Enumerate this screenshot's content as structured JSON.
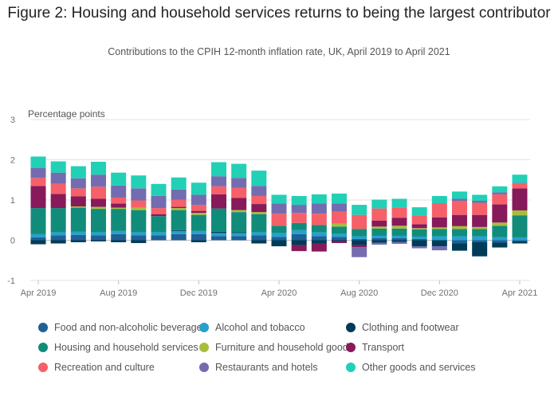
{
  "chart_data": {
    "type": "bar",
    "stacked": true,
    "title": "Figure 2: Housing and household services returns to being the largest contributor",
    "subtitle": "Contributions to the CPIH 12-month inflation rate, UK, April 2019 to April 2021",
    "ylabel": "Percentage points",
    "ylim": [
      -1,
      3
    ],
    "yticks": [
      3,
      2,
      1,
      0,
      -1
    ],
    "grid": true,
    "legend_position": "bottom",
    "x_tick_labels": [
      "Apr 2019",
      "Aug 2019",
      "Dec 2019",
      "Apr 2020",
      "Aug 2020",
      "Dec 2020",
      "Apr 2021"
    ],
    "x_tick_indices": [
      0,
      4,
      8,
      12,
      16,
      20,
      24
    ],
    "categories": [
      "Apr 2019",
      "May 2019",
      "Jun 2019",
      "Jul 2019",
      "Aug 2019",
      "Sep 2019",
      "Oct 2019",
      "Nov 2019",
      "Dec 2019",
      "Jan 2020",
      "Feb 2020",
      "Mar 2020",
      "Apr 2020",
      "May 2020",
      "Jun 2020",
      "Jul 2020",
      "Aug 2020",
      "Sep 2020",
      "Oct 2020",
      "Nov 2020",
      "Dec 2020",
      "Jan 2021",
      "Feb 2021",
      "Mar 2021",
      "Apr 2021"
    ],
    "series": [
      {
        "name": "Food and non-alcoholic beverages",
        "color": "#206095",
        "values": [
          0.07,
          0.12,
          0.13,
          0.12,
          0.15,
          0.12,
          0.12,
          0.15,
          0.15,
          0.1,
          0.1,
          0.12,
          0.08,
          0.15,
          0.1,
          0.08,
          0.03,
          0.05,
          0.05,
          0.03,
          0.0,
          -0.08,
          -0.05,
          -0.06,
          -0.03
        ]
      },
      {
        "name": "Alcohol and tobacco",
        "color": "#27A0CC",
        "values": [
          0.08,
          0.08,
          0.08,
          0.08,
          0.08,
          0.08,
          0.08,
          0.08,
          0.08,
          0.08,
          0.08,
          0.08,
          0.1,
          0.1,
          0.1,
          0.08,
          0.07,
          0.06,
          0.06,
          0.06,
          0.1,
          0.1,
          0.1,
          0.08,
          0.07
        ]
      },
      {
        "name": "Clothing and footwear",
        "color": "#003C57",
        "values": [
          -0.1,
          -0.08,
          -0.05,
          -0.03,
          -0.05,
          -0.07,
          0.0,
          0.02,
          -0.05,
          0.03,
          0.02,
          -0.08,
          -0.15,
          -0.12,
          -0.08,
          -0.02,
          -0.12,
          -0.06,
          -0.04,
          -0.15,
          -0.15,
          -0.18,
          -0.35,
          -0.12,
          -0.05
        ]
      },
      {
        "name": "Housing and household services",
        "color": "#118C7B",
        "values": [
          0.65,
          0.6,
          0.6,
          0.58,
          0.55,
          0.55,
          0.4,
          0.5,
          0.4,
          0.58,
          0.5,
          0.45,
          0.18,
          0.18,
          0.18,
          0.18,
          0.18,
          0.18,
          0.18,
          0.18,
          0.18,
          0.18,
          0.18,
          0.28,
          0.55
        ]
      },
      {
        "name": "Furniture and household goods",
        "color": "#A8BD3A",
        "values": [
          0.0,
          0.0,
          0.03,
          0.05,
          0.03,
          0.06,
          0.0,
          0.05,
          0.05,
          0.0,
          0.05,
          0.05,
          0.0,
          0.0,
          0.0,
          0.07,
          0.0,
          0.05,
          0.07,
          0.03,
          0.04,
          0.07,
          0.05,
          0.08,
          0.12
        ]
      },
      {
        "name": "Transport",
        "color": "#871A5B",
        "values": [
          0.55,
          0.35,
          0.25,
          0.2,
          0.1,
          0.0,
          0.05,
          0.03,
          0.05,
          0.35,
          0.3,
          0.2,
          0.0,
          -0.15,
          -0.2,
          -0.05,
          -0.05,
          0.15,
          0.2,
          0.1,
          0.25,
          0.28,
          0.3,
          0.45,
          0.55
        ]
      },
      {
        "name": "Recreation and culture",
        "color": "#F66068",
        "values": [
          0.2,
          0.25,
          0.2,
          0.3,
          0.15,
          0.18,
          0.15,
          0.18,
          0.15,
          0.2,
          0.25,
          0.2,
          0.3,
          0.25,
          0.28,
          0.3,
          0.35,
          0.3,
          0.25,
          0.22,
          0.35,
          0.35,
          0.3,
          0.25,
          0.12
        ]
      },
      {
        "name": "Restaurants and hotels",
        "color": "#746CB1",
        "values": [
          0.25,
          0.28,
          0.25,
          0.3,
          0.3,
          0.3,
          0.3,
          0.25,
          0.25,
          0.25,
          0.25,
          0.25,
          0.25,
          0.2,
          0.25,
          0.2,
          -0.25,
          -0.05,
          -0.05,
          -0.05,
          -0.1,
          0.05,
          0.05,
          0.05,
          0.02
        ]
      },
      {
        "name": "Other goods and services",
        "color": "#22D0B6",
        "values": [
          0.28,
          0.28,
          0.3,
          0.32,
          0.32,
          0.32,
          0.3,
          0.3,
          0.3,
          0.35,
          0.35,
          0.38,
          0.22,
          0.22,
          0.23,
          0.25,
          0.25,
          0.22,
          0.22,
          0.2,
          0.18,
          0.18,
          0.15,
          0.15,
          0.2
        ]
      }
    ]
  }
}
